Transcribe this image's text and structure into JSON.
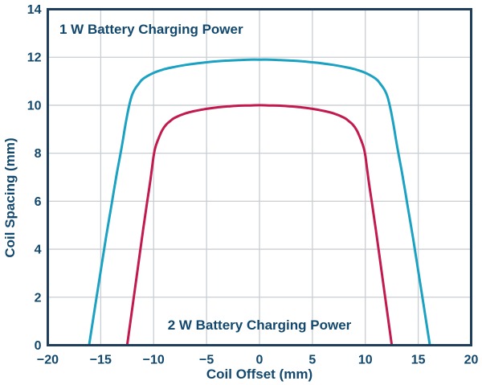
{
  "figure": {
    "background": "#ffffff",
    "text_color": "#12486d",
    "border_color": "#1e3e5c",
    "grid_color": "#c9ced3"
  },
  "chart_data": {
    "type": "line",
    "title": "",
    "xlabel": "Coil Offset (mm)",
    "ylabel": "Coil Spacing (mm)",
    "xlim": [
      -20,
      20
    ],
    "ylim": [
      0,
      14
    ],
    "grid": true,
    "legend_position": "in-plot annotations",
    "x_ticks": [
      -20,
      -15,
      -10,
      -5,
      0,
      5,
      10,
      15,
      20
    ],
    "x_tick_labels": [
      "−20",
      "−15",
      "−10",
      "−5",
      "0",
      "5",
      "10",
      "15",
      "20"
    ],
    "y_ticks": [
      0,
      2,
      4,
      6,
      8,
      10,
      12,
      14
    ],
    "y_tick_labels": [
      "0",
      "2",
      "4",
      "6",
      "8",
      "10",
      "12",
      "14"
    ],
    "series": [
      {
        "name": "1 W Battery Charging Power",
        "color": "#1ba2c3",
        "points": [
          [
            -16.1,
            0
          ],
          [
            -15.5,
            1.7
          ],
          [
            -15,
            3.1
          ],
          [
            -14.5,
            4.5
          ],
          [
            -14,
            5.8
          ],
          [
            -13.5,
            7.1
          ],
          [
            -13,
            8.3
          ],
          [
            -12.7,
            9.1
          ],
          [
            -12.4,
            9.8
          ],
          [
            -12.1,
            10.35
          ],
          [
            -11.8,
            10.65
          ],
          [
            -11.4,
            10.9
          ],
          [
            -11,
            11.1
          ],
          [
            -10,
            11.35
          ],
          [
            -9,
            11.5
          ],
          [
            -8,
            11.6
          ],
          [
            -7,
            11.68
          ],
          [
            -6,
            11.74
          ],
          [
            -5,
            11.79
          ],
          [
            -4,
            11.83
          ],
          [
            -3,
            11.86
          ],
          [
            -2,
            11.88
          ],
          [
            -1,
            11.9
          ],
          [
            0,
            11.9
          ],
          [
            1,
            11.9
          ],
          [
            2,
            11.88
          ],
          [
            3,
            11.86
          ],
          [
            4,
            11.83
          ],
          [
            5,
            11.79
          ],
          [
            6,
            11.74
          ],
          [
            7,
            11.68
          ],
          [
            8,
            11.6
          ],
          [
            9,
            11.5
          ],
          [
            10,
            11.35
          ],
          [
            11,
            11.1
          ],
          [
            11.4,
            10.9
          ],
          [
            11.8,
            10.65
          ],
          [
            12.1,
            10.35
          ],
          [
            12.4,
            9.8
          ],
          [
            12.7,
            9.1
          ],
          [
            13,
            8.3
          ],
          [
            13.5,
            7.1
          ],
          [
            14,
            5.8
          ],
          [
            14.5,
            4.5
          ],
          [
            15,
            3.1
          ],
          [
            15.5,
            1.7
          ],
          [
            16.1,
            0
          ]
        ]
      },
      {
        "name": "2 W Battery Charging Power",
        "color": "#c21a4e",
        "points": [
          [
            -12.5,
            0
          ],
          [
            -12,
            1.6
          ],
          [
            -11.5,
            3.2
          ],
          [
            -11,
            4.8
          ],
          [
            -10.6,
            6.0
          ],
          [
            -10.3,
            6.9
          ],
          [
            -10,
            7.9
          ],
          [
            -9.8,
            8.3
          ],
          [
            -9.5,
            8.65
          ],
          [
            -9.2,
            8.95
          ],
          [
            -8.8,
            9.2
          ],
          [
            -8.4,
            9.35
          ],
          [
            -8,
            9.48
          ],
          [
            -7,
            9.66
          ],
          [
            -6,
            9.77
          ],
          [
            -5,
            9.85
          ],
          [
            -4,
            9.91
          ],
          [
            -3,
            9.95
          ],
          [
            -2,
            9.98
          ],
          [
            -1,
            9.99
          ],
          [
            0,
            10
          ],
          [
            1,
            9.99
          ],
          [
            2,
            9.98
          ],
          [
            3,
            9.95
          ],
          [
            4,
            9.91
          ],
          [
            5,
            9.85
          ],
          [
            6,
            9.77
          ],
          [
            7,
            9.66
          ],
          [
            8,
            9.48
          ],
          [
            8.4,
            9.35
          ],
          [
            8.8,
            9.2
          ],
          [
            9.2,
            8.95
          ],
          [
            9.5,
            8.65
          ],
          [
            9.8,
            8.3
          ],
          [
            10,
            7.9
          ],
          [
            10.3,
            6.9
          ],
          [
            10.6,
            6.0
          ],
          [
            11,
            4.8
          ],
          [
            11.5,
            3.2
          ],
          [
            12,
            1.6
          ],
          [
            12.5,
            0
          ]
        ]
      }
    ],
    "annotations": [
      {
        "text": "1 W Battery Charging Power",
        "position": "upper-left inside plot"
      },
      {
        "text": "2 W Battery Charging Power",
        "position": "lower-center inside plot"
      }
    ]
  }
}
